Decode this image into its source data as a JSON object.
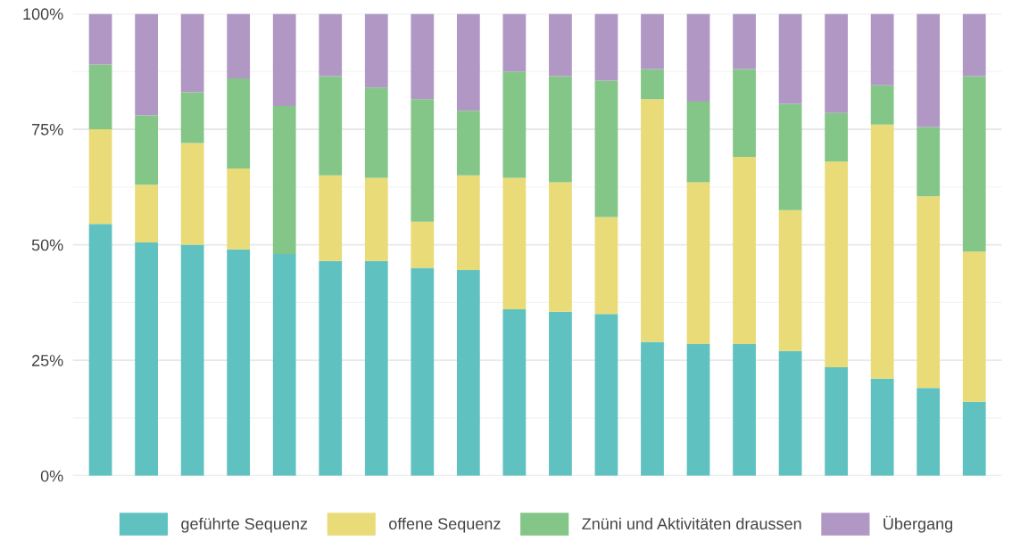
{
  "chart_data": {
    "type": "bar",
    "stacked": true,
    "categories": [
      null,
      null,
      null,
      null,
      null,
      null,
      null,
      null,
      null,
      null,
      null,
      null,
      null,
      null,
      null,
      null,
      null,
      null,
      null,
      null
    ],
    "series": [
      {
        "name": "geführte Sequenz",
        "color": "#5fc2c1",
        "values": [
          54.5,
          50.5,
          50,
          49,
          48,
          46.5,
          46.5,
          45,
          44.5,
          36,
          35.5,
          35,
          29,
          28.5,
          28.5,
          27,
          23.5,
          21,
          19,
          16
        ]
      },
      {
        "name": "offene Sequenz",
        "color": "#e9db78",
        "values": [
          20.5,
          12.5,
          22,
          17.5,
          0,
          18.5,
          18,
          10,
          20.5,
          28.5,
          28,
          21,
          52.5,
          35,
          40.5,
          30.5,
          44.5,
          55,
          41.5,
          32.5
        ]
      },
      {
        "name": "Znüni und Aktivitäten draussen",
        "color": "#84c687",
        "values": [
          14,
          15,
          11,
          19.5,
          32,
          21.5,
          19.5,
          26.5,
          14,
          23,
          23,
          29.5,
          6.5,
          17.5,
          19,
          23,
          10.5,
          8.5,
          15,
          38
        ]
      },
      {
        "name": "Übergang",
        "color": "#b198c4",
        "values": [
          11,
          22,
          17,
          14,
          20,
          13.5,
          16,
          18.5,
          21,
          12.5,
          13.5,
          14.5,
          12,
          19,
          12,
          19.5,
          21.5,
          15.5,
          24.5,
          13.5
        ]
      }
    ],
    "ylim": [
      0,
      100
    ],
    "yticks": [
      {
        "value": 0,
        "label": "0%"
      },
      {
        "value": 25,
        "label": "25%"
      },
      {
        "value": 50,
        "label": "50%"
      },
      {
        "value": 75,
        "label": "75%"
      },
      {
        "value": 100,
        "label": "100%"
      }
    ],
    "tick_labels": "y",
    "grid": true,
    "legend": "bottom"
  }
}
